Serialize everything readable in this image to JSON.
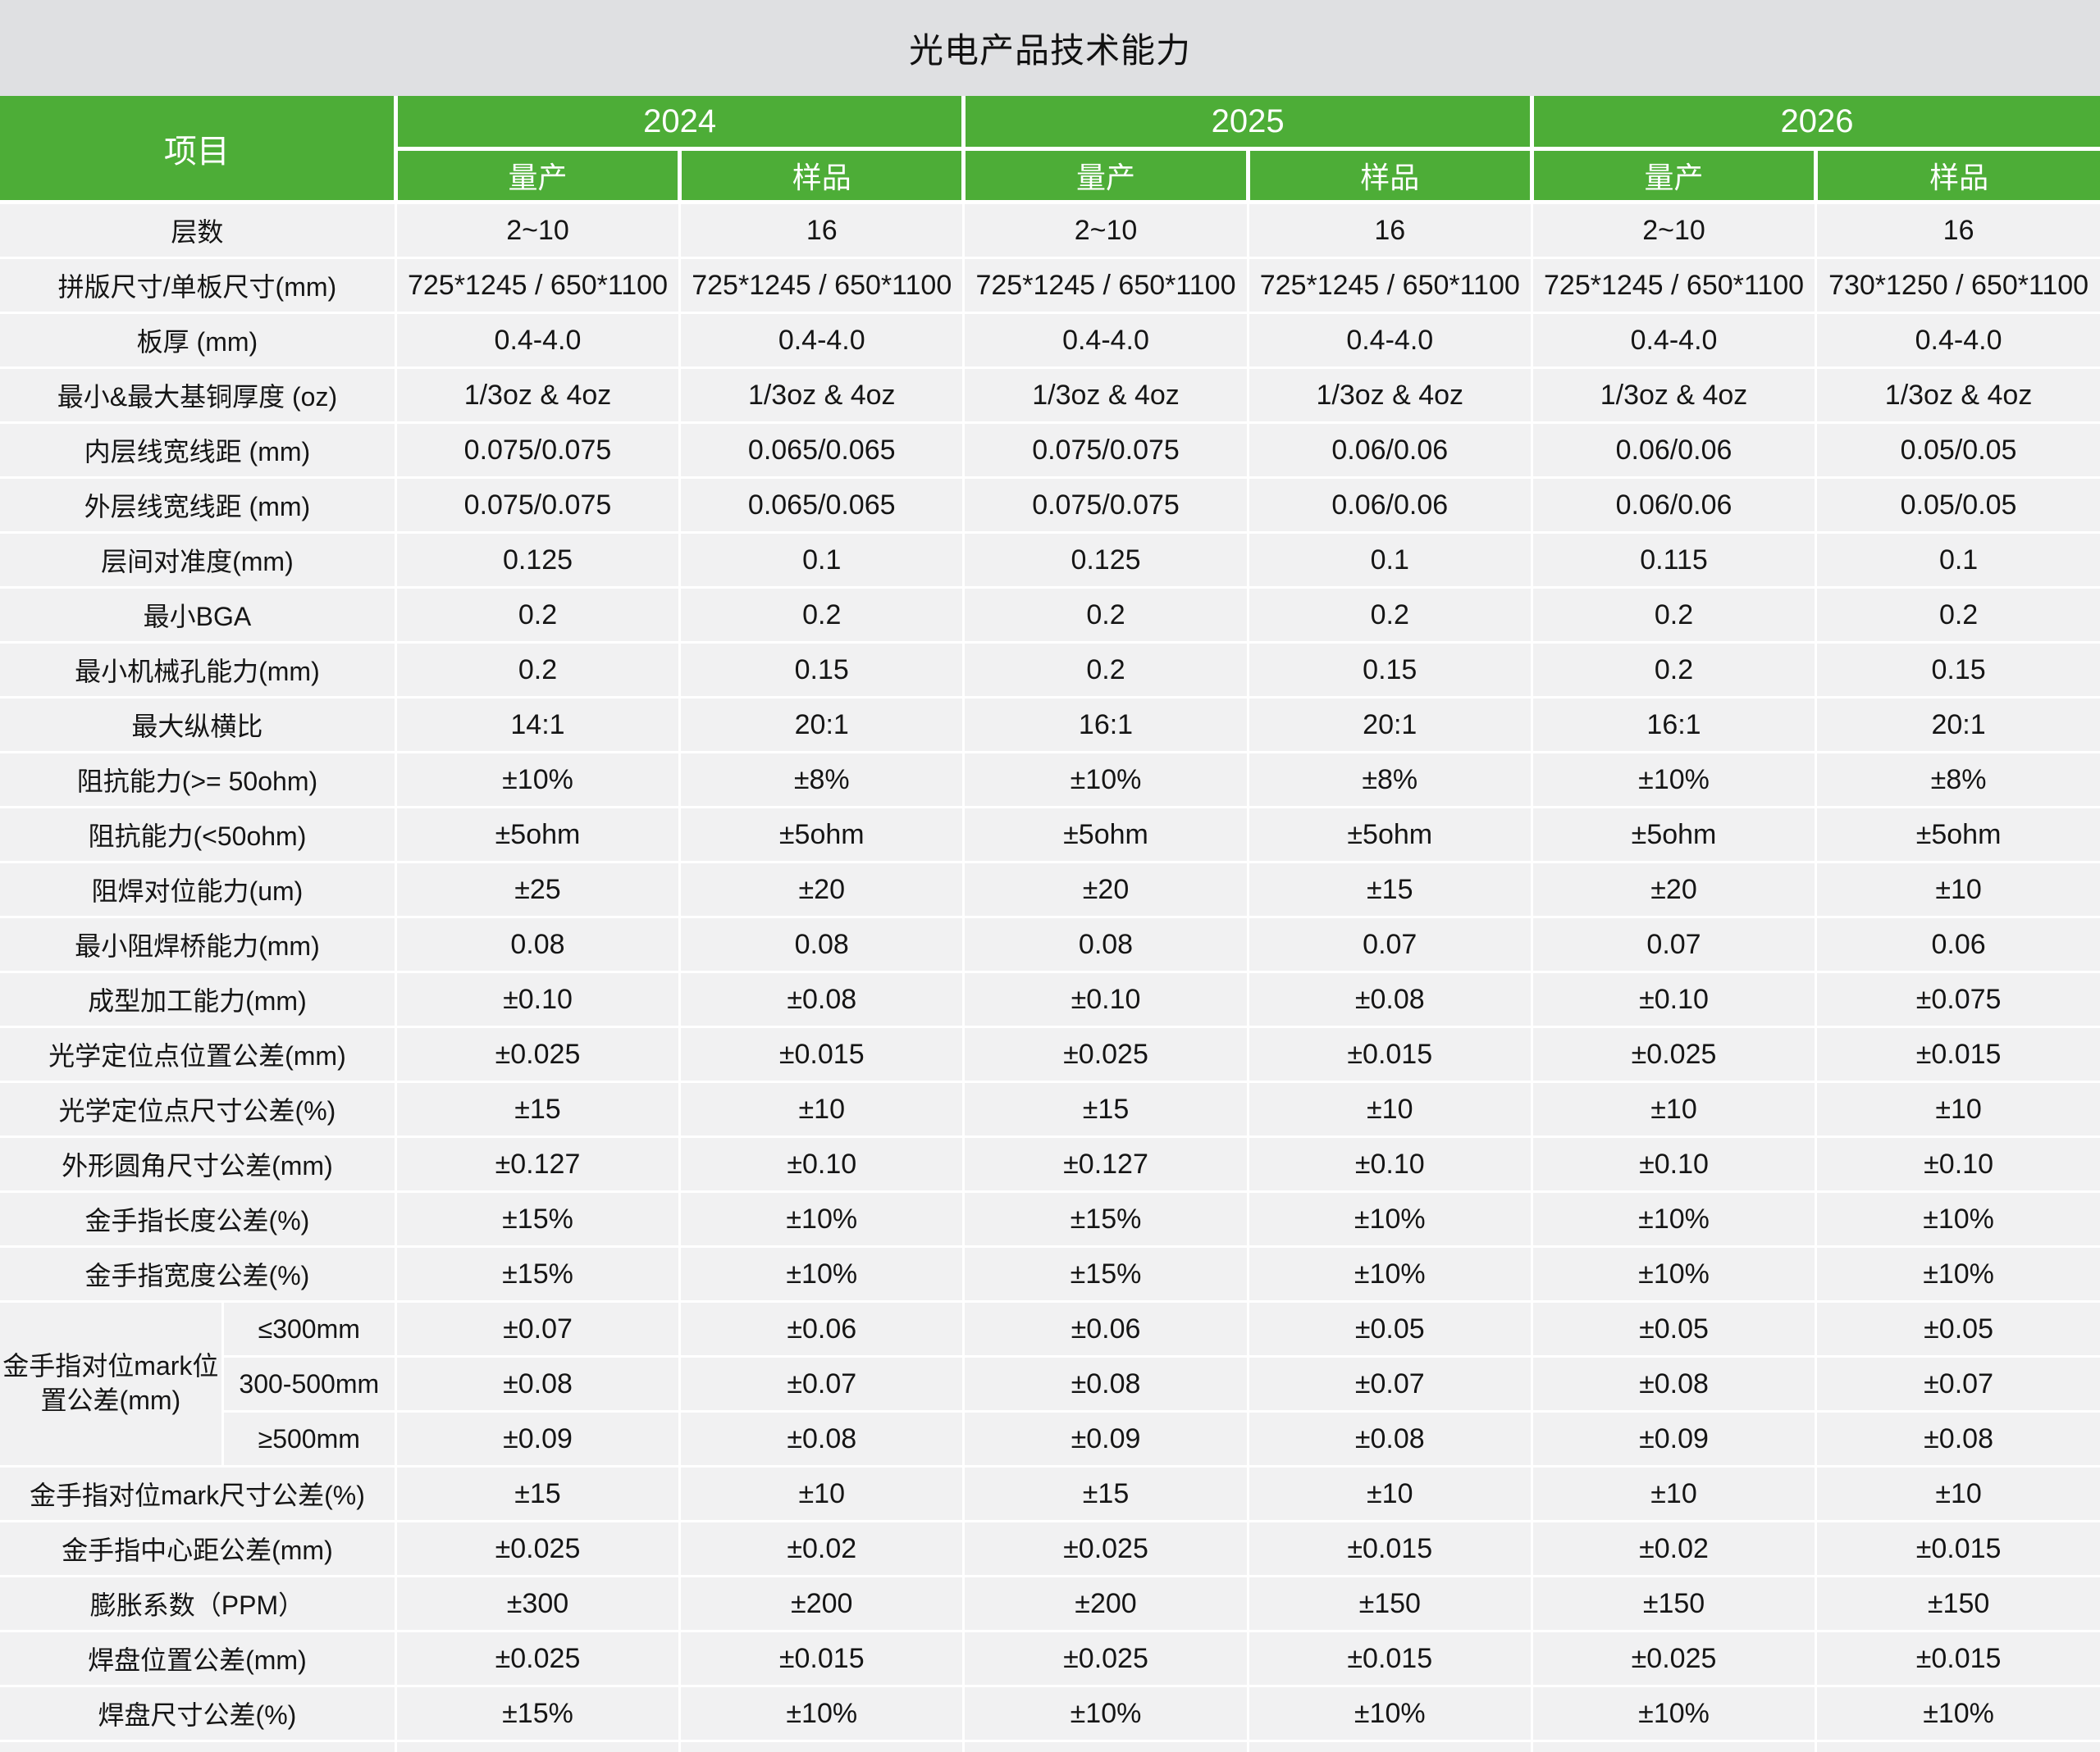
{
  "title": "光电产品技术能力",
  "colors": {
    "header_green": "#4dad37",
    "title_bar_bg": "#dfe0e2",
    "cell_bg": "#f1f1f2",
    "gridline": "#ffffff",
    "text": "#1a1a1a",
    "header_text": "#ffffff"
  },
  "table": {
    "corner_label": "项目",
    "year_groups": [
      {
        "year": "2024",
        "subs": [
          "量产",
          "样品"
        ]
      },
      {
        "year": "2025",
        "subs": [
          "量产",
          "样品"
        ]
      },
      {
        "year": "2026",
        "subs": [
          "量产",
          "样品"
        ]
      }
    ],
    "rows": [
      {
        "label": "层数",
        "cells": [
          "2~10",
          "16",
          "2~10",
          "16",
          "2~10",
          "16"
        ]
      },
      {
        "label": "拼版尺寸/单板尺寸(mm)",
        "cells": [
          "725*1245 / 650*1100",
          "725*1245 / 650*1100",
          "725*1245 / 650*1100",
          "725*1245 / 650*1100",
          "725*1245 / 650*1100",
          "730*1250 / 650*1100"
        ]
      },
      {
        "label": "板厚 (mm)",
        "cells": [
          "0.4-4.0",
          "0.4-4.0",
          "0.4-4.0",
          "0.4-4.0",
          "0.4-4.0",
          "0.4-4.0"
        ]
      },
      {
        "label": "最小&最大基铜厚度 (oz)",
        "cells": [
          "1/3oz & 4oz",
          "1/3oz & 4oz",
          "1/3oz & 4oz",
          "1/3oz & 4oz",
          "1/3oz & 4oz",
          "1/3oz & 4oz"
        ]
      },
      {
        "label": "内层线宽线距 (mm)",
        "cells": [
          "0.075/0.075",
          "0.065/0.065",
          "0.075/0.075",
          "0.06/0.06",
          "0.06/0.06",
          "0.05/0.05"
        ]
      },
      {
        "label": "外层线宽线距 (mm)",
        "cells": [
          "0.075/0.075",
          "0.065/0.065",
          "0.075/0.075",
          "0.06/0.06",
          "0.06/0.06",
          "0.05/0.05"
        ]
      },
      {
        "label": "层间对准度(mm)",
        "cells": [
          "0.125",
          "0.1",
          "0.125",
          "0.1",
          "0.115",
          "0.1"
        ]
      },
      {
        "label": "最小BGA",
        "cells": [
          "0.2",
          "0.2",
          "0.2",
          "0.2",
          "0.2",
          "0.2"
        ]
      },
      {
        "label": "最小机械孔能力(mm)",
        "cells": [
          "0.2",
          "0.15",
          "0.2",
          "0.15",
          "0.2",
          "0.15"
        ]
      },
      {
        "label": "最大纵横比",
        "cells": [
          "14:1",
          "20:1",
          "16:1",
          "20:1",
          "16:1",
          "20:1"
        ]
      },
      {
        "label": "阻抗能力(>= 50ohm)",
        "cells": [
          "±10%",
          "±8%",
          "±10%",
          "±8%",
          "±10%",
          "±8%"
        ]
      },
      {
        "label": "阻抗能力(<50ohm)",
        "cells": [
          "±5ohm",
          "±5ohm",
          "±5ohm",
          "±5ohm",
          "±5ohm",
          "±5ohm"
        ]
      },
      {
        "label": "阻焊对位能力(um)",
        "cells": [
          "±25",
          "±20",
          "±20",
          "±15",
          "±20",
          "±10"
        ]
      },
      {
        "label": "最小阻焊桥能力(mm)",
        "cells": [
          "0.08",
          "0.08",
          "0.08",
          "0.07",
          "0.07",
          "0.06"
        ]
      },
      {
        "label": "成型加工能力(mm)",
        "cells": [
          "±0.10",
          "±0.08",
          "±0.10",
          "±0.08",
          "±0.10",
          "±0.075"
        ]
      },
      {
        "label": "光学定位点位置公差(mm)",
        "cells": [
          "±0.025",
          "±0.015",
          "±0.025",
          "±0.015",
          "±0.025",
          "±0.015"
        ]
      },
      {
        "label": "光学定位点尺寸公差(%)",
        "cells": [
          "±15",
          "±10",
          "±15",
          "±10",
          "±10",
          "±10"
        ]
      },
      {
        "label": "外形圆角尺寸公差(mm)",
        "cells": [
          "±0.127",
          "±0.10",
          "±0.127",
          "±0.10",
          "±0.10",
          "±0.10"
        ]
      },
      {
        "label": "金手指长度公差(%)",
        "cells": [
          "±15%",
          "±10%",
          "±15%",
          "±10%",
          "±10%",
          "±10%"
        ]
      },
      {
        "label": "金手指宽度公差(%)",
        "cells": [
          "±15%",
          "±10%",
          "±15%",
          "±10%",
          "±10%",
          "±10%"
        ]
      },
      {
        "group": "金手指对位mark位置公差(mm)",
        "sublabel": "≤300mm",
        "cells": [
          "±0.07",
          "±0.06",
          "±0.06",
          "±0.05",
          "±0.05",
          "±0.05"
        ]
      },
      {
        "sublabel": "300-500mm",
        "cells": [
          "±0.08",
          "±0.07",
          "±0.08",
          "±0.07",
          "±0.08",
          "±0.07"
        ]
      },
      {
        "sublabel": "≥500mm",
        "cells": [
          "±0.09",
          "±0.08",
          "±0.09",
          "±0.08",
          "±0.09",
          "±0.08"
        ]
      },
      {
        "label": "金手指对位mark尺寸公差(%)",
        "cells": [
          "±15",
          "±10",
          "±15",
          "±10",
          "±10",
          "±10"
        ]
      },
      {
        "label": "金手指中心距公差(mm)",
        "cells": [
          "±0.025",
          "±0.02",
          "±0.025",
          "±0.015",
          "±0.02",
          "±0.015"
        ]
      },
      {
        "label": "膨胀系数（PPM）",
        "cells": [
          "±300",
          "±200",
          "±200",
          "±150",
          "±150",
          "±150"
        ]
      },
      {
        "label": "焊盘位置公差(mm)",
        "cells": [
          "±0.025",
          "±0.015",
          "±0.025",
          "±0.015",
          "±0.025",
          "±0.015"
        ]
      },
      {
        "label": "焊盘尺寸公差(%)",
        "cells": [
          "±15%",
          "±10%",
          "±10%",
          "±10%",
          "±10%",
          "±10%"
        ]
      }
    ]
  }
}
